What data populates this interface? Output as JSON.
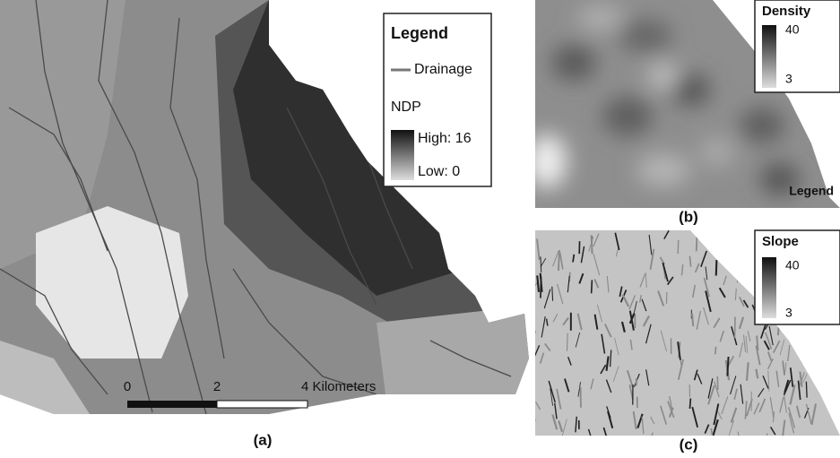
{
  "panel_a": {
    "legend": {
      "title": "Legend",
      "drainage": "Drainage",
      "ndp": "NDP",
      "high": "High: 16",
      "low": "Low: 0"
    },
    "scale_bar": [
      "0",
      "2",
      "4 Kilometers"
    ],
    "caption": "(a)"
  },
  "panel_b": {
    "legend_title": "Density",
    "max": "40",
    "min": "3",
    "corner_label": "Legend",
    "caption": "(b)"
  },
  "panel_c": {
    "legend_title": "Slope",
    "max": "40",
    "min": "3",
    "caption": "(c)"
  }
}
